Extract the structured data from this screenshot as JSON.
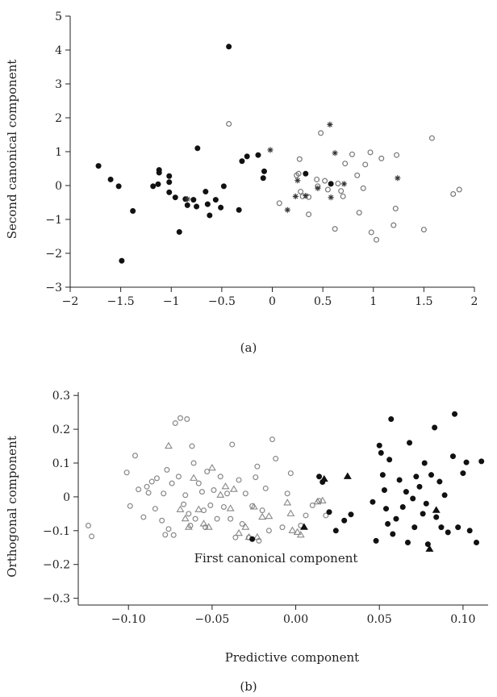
{
  "chart_data": [
    {
      "type": "scatter",
      "panel_label": "(a)",
      "xlabel": "First canonical component",
      "ylabel": "Second canonical component",
      "xlim": [
        -2,
        2
      ],
      "ylim": [
        -3,
        5
      ],
      "xticks": [
        "−2",
        "−1.5",
        "−1",
        "−0.5",
        "0",
        "0.5",
        "1",
        "1.5",
        "2"
      ],
      "yticks": [
        "−3",
        "−2",
        "−1",
        "0",
        "1",
        "2",
        "3",
        "4",
        "5"
      ],
      "xtick_values": [
        -2,
        -1.5,
        -1,
        -0.5,
        0,
        0.5,
        1,
        1.5,
        2
      ],
      "ytick_values": [
        -3,
        -2,
        -1,
        0,
        1,
        2,
        3,
        4,
        5
      ],
      "grid": false,
      "series": [
        {
          "marker": "filled-circle",
          "color": "#111111",
          "points": [
            [
              -1.72,
              0.58
            ],
            [
              -1.6,
              0.18
            ],
            [
              -1.52,
              -0.02
            ],
            [
              -1.49,
              -2.22
            ],
            [
              -1.38,
              -0.75
            ],
            [
              -1.18,
              -0.02
            ],
            [
              -1.13,
              0.04
            ],
            [
              -1.12,
              0.38
            ],
            [
              -1.12,
              0.46
            ],
            [
              -1.02,
              0.28
            ],
            [
              -1.02,
              0.1
            ],
            [
              -1.02,
              -0.2
            ],
            [
              -0.96,
              -0.35
            ],
            [
              -0.92,
              -1.37
            ],
            [
              -0.86,
              -0.4
            ],
            [
              -0.84,
              -0.58
            ],
            [
              -0.78,
              -0.42
            ],
            [
              -0.75,
              -0.62
            ],
            [
              -0.74,
              1.1
            ],
            [
              -0.66,
              -0.18
            ],
            [
              -0.64,
              -0.55
            ],
            [
              -0.62,
              -0.88
            ],
            [
              -0.56,
              -0.42
            ],
            [
              -0.51,
              -0.65
            ],
            [
              -0.48,
              -0.02
            ],
            [
              -0.43,
              4.1
            ],
            [
              -0.33,
              -0.72
            ],
            [
              -0.3,
              0.72
            ],
            [
              -0.25,
              0.86
            ],
            [
              -0.14,
              0.9
            ],
            [
              -0.09,
              0.22
            ],
            [
              -0.08,
              0.42
            ],
            [
              0.33,
              0.35
            ],
            [
              0.58,
              0.05
            ]
          ]
        },
        {
          "marker": "open-circle",
          "color": "#777777",
          "points": [
            [
              -0.43,
              1.82
            ],
            [
              0.07,
              -0.52
            ],
            [
              0.24,
              0.3
            ],
            [
              0.26,
              0.35
            ],
            [
              0.27,
              0.78
            ],
            [
              0.28,
              -0.18
            ],
            [
              0.3,
              -0.32
            ],
            [
              0.36,
              -0.85
            ],
            [
              0.36,
              -0.34
            ],
            [
              0.44,
              0.18
            ],
            [
              0.45,
              -0.02
            ],
            [
              0.48,
              1.55
            ],
            [
              0.52,
              0.14
            ],
            [
              0.55,
              -0.12
            ],
            [
              0.62,
              -1.28
            ],
            [
              0.65,
              0.06
            ],
            [
              0.68,
              -0.16
            ],
            [
              0.7,
              -0.32
            ],
            [
              0.72,
              0.65
            ],
            [
              0.79,
              0.92
            ],
            [
              0.84,
              0.3
            ],
            [
              0.86,
              -0.8
            ],
            [
              0.9,
              -0.08
            ],
            [
              0.92,
              0.62
            ],
            [
              0.97,
              0.98
            ],
            [
              0.98,
              -1.38
            ],
            [
              1.03,
              -1.6
            ],
            [
              1.08,
              0.8
            ],
            [
              1.2,
              -1.17
            ],
            [
              1.22,
              -0.68
            ],
            [
              1.23,
              0.9
            ],
            [
              1.5,
              -1.3
            ],
            [
              1.58,
              1.4
            ],
            [
              1.79,
              -0.25
            ],
            [
              1.85,
              -0.12
            ]
          ]
        },
        {
          "marker": "asterisk",
          "color": "#333333",
          "points": [
            [
              -0.84,
              -0.4
            ],
            [
              -0.02,
              1.05
            ],
            [
              0.15,
              -0.72
            ],
            [
              0.23,
              -0.32
            ],
            [
              0.25,
              0.15
            ],
            [
              0.33,
              -0.3
            ],
            [
              0.45,
              -0.08
            ],
            [
              0.57,
              1.8
            ],
            [
              0.58,
              -0.35
            ],
            [
              0.62,
              0.96
            ],
            [
              0.71,
              0.05
            ],
            [
              1.24,
              0.22
            ]
          ]
        }
      ]
    },
    {
      "type": "scatter",
      "panel_label": "(b)",
      "xlabel": "Predictive component",
      "ylabel": "Orthogonal component",
      "xlim": [
        -0.13,
        0.115
      ],
      "ylim": [
        -0.32,
        0.31
      ],
      "xticks": [
        "−0.10",
        "−0.05",
        "0.00",
        "0.05",
        "0.10"
      ],
      "yticks": [
        "−0.3",
        "−0.2",
        "−0.1",
        "0",
        "0.1",
        "0.2",
        "0.3"
      ],
      "xtick_values": [
        -0.1,
        -0.05,
        0,
        0.05,
        0.1
      ],
      "ytick_values": [
        -0.3,
        -0.2,
        -0.1,
        0,
        0.1,
        0.2,
        0.3
      ],
      "grid": false,
      "series": [
        {
          "marker": "open-circle",
          "color": "#888888",
          "points": [
            [
              -0.124,
              -0.085
            ],
            [
              -0.122,
              -0.117
            ],
            [
              -0.101,
              0.072
            ],
            [
              -0.099,
              -0.027
            ],
            [
              -0.096,
              0.122
            ],
            [
              -0.094,
              0.022
            ],
            [
              -0.091,
              -0.06
            ],
            [
              -0.089,
              0.03
            ],
            [
              -0.088,
              0.012
            ],
            [
              -0.086,
              0.045
            ],
            [
              -0.084,
              -0.035
            ],
            [
              -0.083,
              0.055
            ],
            [
              -0.08,
              -0.07
            ],
            [
              -0.079,
              0.01
            ],
            [
              -0.078,
              -0.112
            ],
            [
              -0.077,
              0.08
            ],
            [
              -0.076,
              -0.095
            ],
            [
              -0.074,
              0.04
            ],
            [
              -0.073,
              -0.113
            ],
            [
              -0.072,
              0.218
            ],
            [
              -0.07,
              0.06
            ],
            [
              -0.069,
              0.233
            ],
            [
              -0.067,
              -0.022
            ],
            [
              -0.066,
              0.005
            ],
            [
              -0.065,
              0.23
            ],
            [
              -0.064,
              -0.05
            ],
            [
              -0.063,
              -0.085
            ],
            [
              -0.062,
              0.15
            ],
            [
              -0.061,
              0.1
            ],
            [
              -0.06,
              -0.065
            ],
            [
              -0.058,
              0.04
            ],
            [
              -0.056,
              0.015
            ],
            [
              -0.055,
              -0.04
            ],
            [
              -0.054,
              -0.09
            ],
            [
              -0.053,
              0.075
            ],
            [
              -0.051,
              -0.025
            ],
            [
              -0.049,
              0.02
            ],
            [
              -0.047,
              -0.065
            ],
            [
              -0.045,
              0.06
            ],
            [
              -0.043,
              -0.03
            ],
            [
              -0.041,
              0.01
            ],
            [
              -0.039,
              -0.065
            ],
            [
              -0.038,
              0.155
            ],
            [
              -0.036,
              -0.12
            ],
            [
              -0.034,
              0.05
            ],
            [
              -0.032,
              -0.08
            ],
            [
              -0.03,
              0.01
            ],
            [
              -0.028,
              -0.12
            ],
            [
              -0.026,
              -0.027
            ],
            [
              -0.024,
              0.058
            ],
            [
              -0.023,
              0.09
            ],
            [
              -0.022,
              -0.13
            ],
            [
              -0.02,
              -0.04
            ],
            [
              -0.018,
              0.025
            ],
            [
              -0.016,
              -0.1
            ],
            [
              -0.014,
              0.17
            ],
            [
              -0.012,
              0.113
            ],
            [
              -0.008,
              -0.09
            ],
            [
              -0.005,
              0.01
            ],
            [
              -0.003,
              0.07
            ],
            [
              0.003,
              -0.085
            ],
            [
              0.006,
              -0.055
            ],
            [
              0.01,
              -0.025
            ],
            [
              0.014,
              -0.012
            ],
            [
              0.018,
              -0.055
            ]
          ]
        },
        {
          "marker": "open-triangle",
          "color": "#888888",
          "points": [
            [
              -0.076,
              0.15
            ],
            [
              -0.069,
              -0.038
            ],
            [
              -0.066,
              -0.065
            ],
            [
              -0.064,
              -0.09
            ],
            [
              -0.061,
              0.055
            ],
            [
              -0.058,
              -0.038
            ],
            [
              -0.055,
              -0.08
            ],
            [
              -0.052,
              -0.09
            ],
            [
              -0.05,
              0.085
            ],
            [
              -0.045,
              0.005
            ],
            [
              -0.042,
              0.03
            ],
            [
              -0.039,
              -0.035
            ],
            [
              -0.037,
              0.022
            ],
            [
              -0.034,
              -0.108
            ],
            [
              -0.03,
              -0.09
            ],
            [
              -0.028,
              -0.12
            ],
            [
              -0.025,
              -0.03
            ],
            [
              -0.023,
              -0.12
            ],
            [
              -0.02,
              -0.06
            ],
            [
              -0.016,
              -0.058
            ],
            [
              -0.005,
              -0.018
            ],
            [
              -0.003,
              -0.05
            ],
            [
              -0.002,
              -0.1
            ],
            [
              0.001,
              -0.105
            ],
            [
              0.003,
              -0.113
            ],
            [
              0.013,
              -0.015
            ],
            [
              0.016,
              -0.012
            ]
          ]
        },
        {
          "marker": "filled-circle",
          "color": "#111111",
          "points": [
            [
              -0.026,
              -0.125
            ],
            [
              0.014,
              0.06
            ],
            [
              0.016,
              0.044
            ],
            [
              0.02,
              -0.045
            ],
            [
              0.024,
              -0.1
            ],
            [
              0.029,
              -0.07
            ],
            [
              0.033,
              -0.052
            ],
            [
              0.046,
              -0.015
            ],
            [
              0.048,
              -0.13
            ],
            [
              0.05,
              0.152
            ],
            [
              0.051,
              0.13
            ],
            [
              0.052,
              0.065
            ],
            [
              0.053,
              0.02
            ],
            [
              0.054,
              -0.035
            ],
            [
              0.055,
              -0.08
            ],
            [
              0.056,
              0.11
            ],
            [
              0.057,
              0.23
            ],
            [
              0.058,
              -0.11
            ],
            [
              0.06,
              -0.065
            ],
            [
              0.062,
              0.05
            ],
            [
              0.064,
              -0.03
            ],
            [
              0.066,
              0.015
            ],
            [
              0.067,
              -0.135
            ],
            [
              0.068,
              0.16
            ],
            [
              0.07,
              -0.005
            ],
            [
              0.071,
              -0.09
            ],
            [
              0.072,
              0.06
            ],
            [
              0.074,
              0.03
            ],
            [
              0.076,
              -0.05
            ],
            [
              0.077,
              0.1
            ],
            [
              0.078,
              -0.02
            ],
            [
              0.079,
              -0.14
            ],
            [
              0.081,
              0.065
            ],
            [
              0.083,
              0.205
            ],
            [
              0.084,
              -0.06
            ],
            [
              0.086,
              0.045
            ],
            [
              0.087,
              -0.09
            ],
            [
              0.089,
              0.005
            ],
            [
              0.091,
              -0.105
            ],
            [
              0.094,
              0.12
            ],
            [
              0.095,
              0.245
            ],
            [
              0.097,
              -0.09
            ],
            [
              0.1,
              0.07
            ],
            [
              0.102,
              0.102
            ],
            [
              0.104,
              -0.1
            ],
            [
              0.108,
              -0.135
            ],
            [
              0.111,
              0.105
            ]
          ]
        },
        {
          "marker": "filled-triangle",
          "color": "#111111",
          "points": [
            [
              0.005,
              -0.09
            ],
            [
              0.017,
              0.052
            ],
            [
              0.031,
              0.06
            ],
            [
              0.084,
              -0.04
            ],
            [
              0.08,
              -0.155
            ]
          ]
        }
      ]
    }
  ]
}
